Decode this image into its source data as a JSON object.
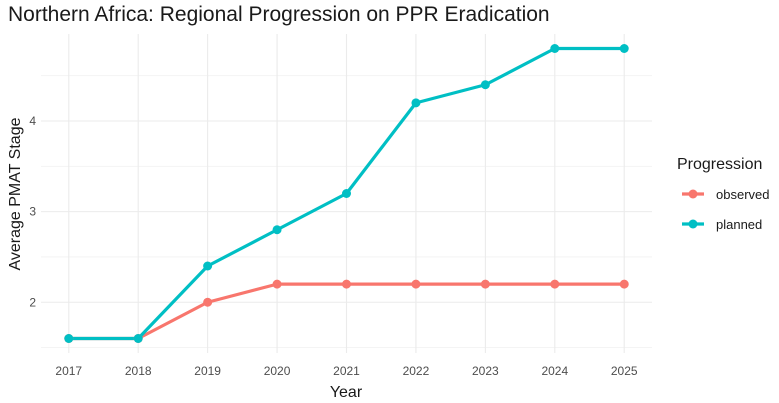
{
  "chart_data": {
    "type": "line",
    "title": "Northern Africa: Regional Progression on PPR Eradication",
    "xlabel": "Year",
    "ylabel": "Average PMAT Stage",
    "x": [
      2017,
      2018,
      2019,
      2020,
      2021,
      2022,
      2023,
      2024,
      2025
    ],
    "x_tick_labels": [
      "2017",
      "2018",
      "2019",
      "2020",
      "2021",
      "2022",
      "2023",
      "2024",
      "2025"
    ],
    "y_ticks": [
      2,
      3,
      4
    ],
    "y_tick_labels": [
      "2",
      "3",
      "4"
    ],
    "xlim": [
      2016.6,
      2025.4
    ],
    "ylim": [
      1.44,
      4.96
    ],
    "legend_title": "Progression",
    "legend_position": "right",
    "series": [
      {
        "name": "observed",
        "color": "#F8766D",
        "values": [
          1.6,
          1.6,
          2.0,
          2.2,
          2.2,
          2.2,
          2.2,
          2.2,
          2.2
        ]
      },
      {
        "name": "planned",
        "color": "#00BFC4",
        "values": [
          1.6,
          1.6,
          2.4,
          2.8,
          3.2,
          4.2,
          4.4,
          4.8,
          4.8
        ]
      }
    ],
    "grid": true
  }
}
